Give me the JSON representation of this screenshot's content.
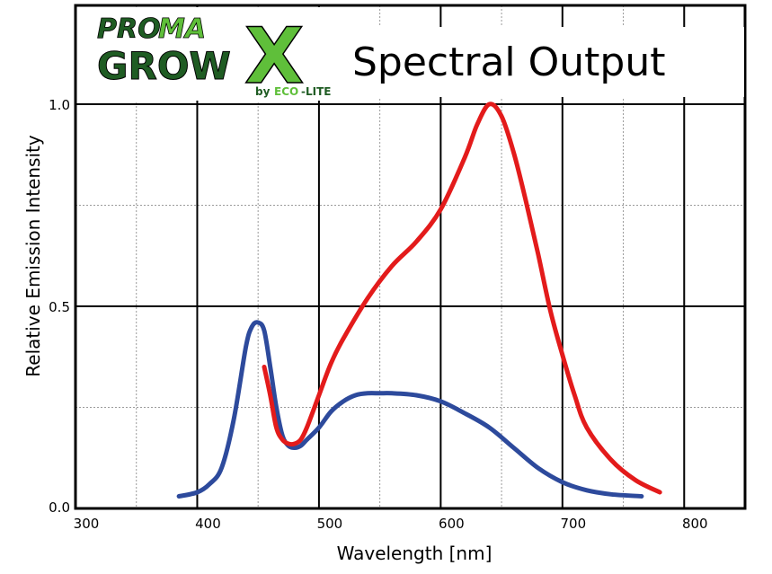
{
  "logo": {
    "pro": "PRO",
    "max": "MA",
    "grow": "GROW",
    "x": "X",
    "by": "by",
    "eco": "ECO",
    "lite": "-LITE",
    "colors": {
      "dark_green": "#1f5c23",
      "bright_green": "#5fbf3a",
      "outline": "#000000"
    }
  },
  "chart_data": {
    "type": "line",
    "title": "Spectral Output",
    "xlabel": "Wavelength [nm]",
    "ylabel": "Relative Emission Intensity",
    "xlim": [
      300,
      850
    ],
    "ylim": [
      0,
      1.0
    ],
    "x_ticks": [
      300,
      400,
      500,
      600,
      700,
      800
    ],
    "x_tick_labels": [
      "300",
      "400",
      "500",
      "600",
      "700",
      "800"
    ],
    "y_ticks": [
      0,
      0.5,
      1.0
    ],
    "y_tick_labels": [
      "0.0",
      "0.5",
      "1.0"
    ],
    "grid": true,
    "series": [
      {
        "color": "#2d4a9c",
        "x": [
          385,
          400,
          410,
          420,
          430,
          440,
          445,
          450,
          455,
          460,
          465,
          470,
          475,
          480,
          485,
          490,
          500,
          510,
          520,
          530,
          540,
          550,
          560,
          580,
          600,
          620,
          640,
          660,
          680,
          700,
          720,
          740,
          765
        ],
        "y": [
          0.03,
          0.04,
          0.06,
          0.1,
          0.22,
          0.4,
          0.45,
          0.46,
          0.44,
          0.35,
          0.25,
          0.18,
          0.155,
          0.15,
          0.155,
          0.17,
          0.2,
          0.24,
          0.265,
          0.28,
          0.285,
          0.285,
          0.285,
          0.28,
          0.265,
          0.235,
          0.2,
          0.15,
          0.1,
          0.065,
          0.045,
          0.035,
          0.03
        ]
      },
      {
        "color": "#e31b1b",
        "x": [
          455,
          460,
          465,
          470,
          475,
          480,
          485,
          490,
          500,
          510,
          520,
          540,
          560,
          580,
          600,
          620,
          630,
          640,
          650,
          660,
          670,
          680,
          690,
          700,
          710,
          720,
          740,
          760,
          780
        ],
        "y": [
          0.35,
          0.28,
          0.2,
          0.17,
          0.16,
          0.16,
          0.17,
          0.2,
          0.28,
          0.36,
          0.42,
          0.52,
          0.6,
          0.66,
          0.74,
          0.87,
          0.95,
          1.0,
          0.97,
          0.88,
          0.76,
          0.63,
          0.49,
          0.38,
          0.28,
          0.2,
          0.12,
          0.07,
          0.04
        ]
      }
    ]
  }
}
